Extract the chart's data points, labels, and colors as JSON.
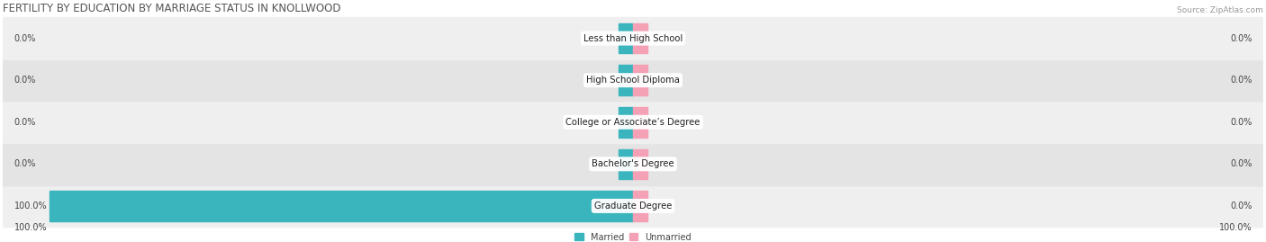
{
  "title": "FERTILITY BY EDUCATION BY MARRIAGE STATUS IN KNOLLWOOD",
  "source": "Source: ZipAtlas.com",
  "categories": [
    "Graduate Degree",
    "Bachelor's Degree",
    "College or Associate’s Degree",
    "High School Diploma",
    "Less than High School"
  ],
  "married_values": [
    100.0,
    0.0,
    0.0,
    0.0,
    0.0
  ],
  "unmarried_values": [
    0.0,
    0.0,
    0.0,
    0.0,
    0.0
  ],
  "married_color": "#3ab5bd",
  "unmarried_color": "#f4a0b5",
  "row_bg_even": "#efefef",
  "row_bg_odd": "#e4e4e4",
  "max_val": 100.0,
  "label_left": [
    "100.0%",
    "0.0%",
    "0.0%",
    "0.0%",
    "0.0%"
  ],
  "label_right": [
    "0.0%",
    "0.0%",
    "0.0%",
    "0.0%",
    "0.0%"
  ],
  "axis_left_label": "100.0%",
  "axis_right_label": "100.0%",
  "legend_married": "Married",
  "legend_unmarried": "Unmarried",
  "title_fontsize": 8.5,
  "label_fontsize": 7.0,
  "category_fontsize": 7.2,
  "source_fontsize": 6.5
}
